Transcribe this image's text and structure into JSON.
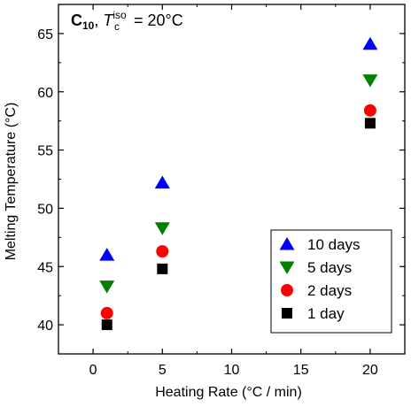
{
  "chart_data": {
    "type": "scatter",
    "xlabel": "Heating Rate (°C / min)",
    "ylabel": "Melting Temperature (°C)",
    "xlim": [
      -2.5,
      22.5
    ],
    "ylim": [
      37.5,
      67.5
    ],
    "x_ticks": [
      0,
      5,
      10,
      15,
      20
    ],
    "y_ticks": [
      40,
      45,
      50,
      55,
      60,
      65
    ],
    "x_tick_labels": [
      "0",
      "5",
      "10",
      "15",
      "20"
    ],
    "y_tick_labels": [
      "40",
      "45",
      "50",
      "55",
      "60",
      "65"
    ],
    "grid": false,
    "legend_position": "bottom-right",
    "annotation": {
      "main": "C",
      "main_sub": "10",
      "sep": ", ",
      "t": "T",
      "t_sub": "c",
      "t_sup": "iso",
      "rest": " = 20°C"
    },
    "series": [
      {
        "name": "10 days",
        "marker": "triangle-up",
        "color": "#0000ff",
        "points": [
          {
            "x": 1,
            "y": 46.0
          },
          {
            "x": 5,
            "y": 52.2
          },
          {
            "x": 20,
            "y": 64.1
          }
        ]
      },
      {
        "name": "5 days",
        "marker": "triangle-down",
        "color": "#008000",
        "points": [
          {
            "x": 1,
            "y": 43.3
          },
          {
            "x": 5,
            "y": 48.3
          },
          {
            "x": 20,
            "y": 61.0
          }
        ]
      },
      {
        "name": "2 days",
        "marker": "circle",
        "color": "#ff0000",
        "points": [
          {
            "x": 1,
            "y": 41.0
          },
          {
            "x": 5,
            "y": 46.3
          },
          {
            "x": 20,
            "y": 58.4
          }
        ]
      },
      {
        "name": "1 day",
        "marker": "square",
        "color": "#000000",
        "points": [
          {
            "x": 1,
            "y": 40.0
          },
          {
            "x": 5,
            "y": 44.8
          },
          {
            "x": 20,
            "y": 57.3
          }
        ]
      }
    ]
  }
}
